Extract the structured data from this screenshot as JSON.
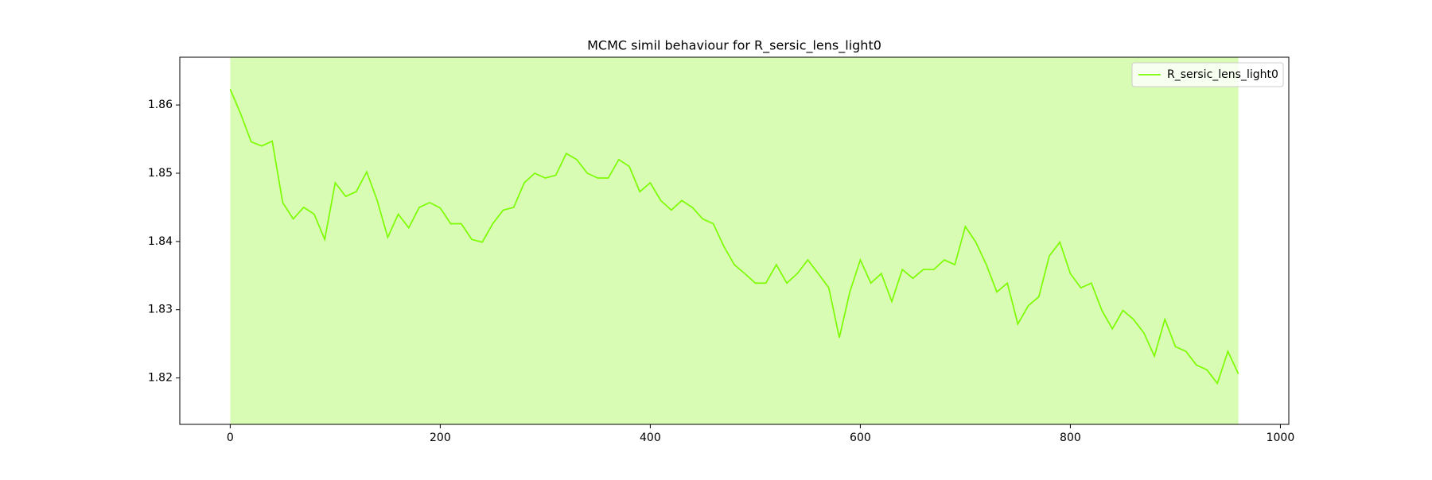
{
  "chart_data": {
    "type": "line",
    "title": "MCMC simil behaviour for R_sersic_lens_light0",
    "x": [
      0,
      10,
      20,
      30,
      40,
      50,
      60,
      70,
      80,
      90,
      100,
      110,
      120,
      130,
      140,
      150,
      160,
      170,
      180,
      190,
      200,
      210,
      220,
      230,
      240,
      250,
      260,
      270,
      280,
      290,
      300,
      310,
      320,
      330,
      340,
      350,
      360,
      370,
      380,
      390,
      400,
      410,
      420,
      430,
      440,
      450,
      460,
      470,
      480,
      490,
      500,
      510,
      520,
      530,
      540,
      550,
      560,
      570,
      580,
      590,
      600,
      610,
      620,
      630,
      640,
      650,
      660,
      670,
      680,
      690,
      700,
      710,
      720,
      730,
      740,
      750,
      760,
      770,
      780,
      790,
      800,
      810,
      820,
      830,
      840,
      850,
      860,
      870,
      880,
      890,
      900,
      910,
      920,
      930,
      940,
      950,
      960
    ],
    "series": [
      {
        "name": "R_sersic_lens_light0",
        "color": "#7cfc00",
        "values": [
          1.8623,
          1.8587,
          1.8546,
          1.854,
          1.8547,
          1.8457,
          1.8433,
          1.845,
          1.844,
          1.8403,
          1.8486,
          1.8466,
          1.8473,
          1.8502,
          1.846,
          1.8406,
          1.844,
          1.842,
          1.845,
          1.8457,
          1.8449,
          1.8426,
          1.8426,
          1.8403,
          1.8399,
          1.8426,
          1.8446,
          1.845,
          1.8486,
          1.85,
          1.8493,
          1.8497,
          1.8529,
          1.852,
          1.85,
          1.8493,
          1.8493,
          1.852,
          1.851,
          1.8473,
          1.8486,
          1.846,
          1.8446,
          1.846,
          1.845,
          1.8433,
          1.8426,
          1.8393,
          1.8366,
          1.8353,
          1.8339,
          1.8339,
          1.8366,
          1.8339,
          1.8353,
          1.8373,
          1.8353,
          1.8332,
          1.8259,
          1.8326,
          1.8373,
          1.8339,
          1.8353,
          1.8312,
          1.8359,
          1.8346,
          1.8359,
          1.8359,
          1.8373,
          1.8366,
          1.8422,
          1.8399,
          1.8366,
          1.8326,
          1.8339,
          1.8279,
          1.8306,
          1.8319,
          1.8379,
          1.8399,
          1.8353,
          1.8332,
          1.8339,
          1.8299,
          1.8272,
          1.8299,
          1.8286,
          1.8266,
          1.8232,
          1.8286,
          1.8246,
          1.8239,
          1.8219,
          1.8212,
          1.8192,
          1.8239,
          1.8206
        ]
      }
    ],
    "span": {
      "x": [
        0,
        960
      ],
      "color": "#d8fcb3"
    },
    "xlim": [
      -48,
      1008
    ],
    "xticks": [
      0,
      200,
      400,
      600,
      800,
      1000
    ],
    "ylim": [
      1.8132,
      1.867
    ],
    "yticks": [
      1.82,
      1.83,
      1.84,
      1.85,
      1.86
    ],
    "legend": "upper right"
  }
}
